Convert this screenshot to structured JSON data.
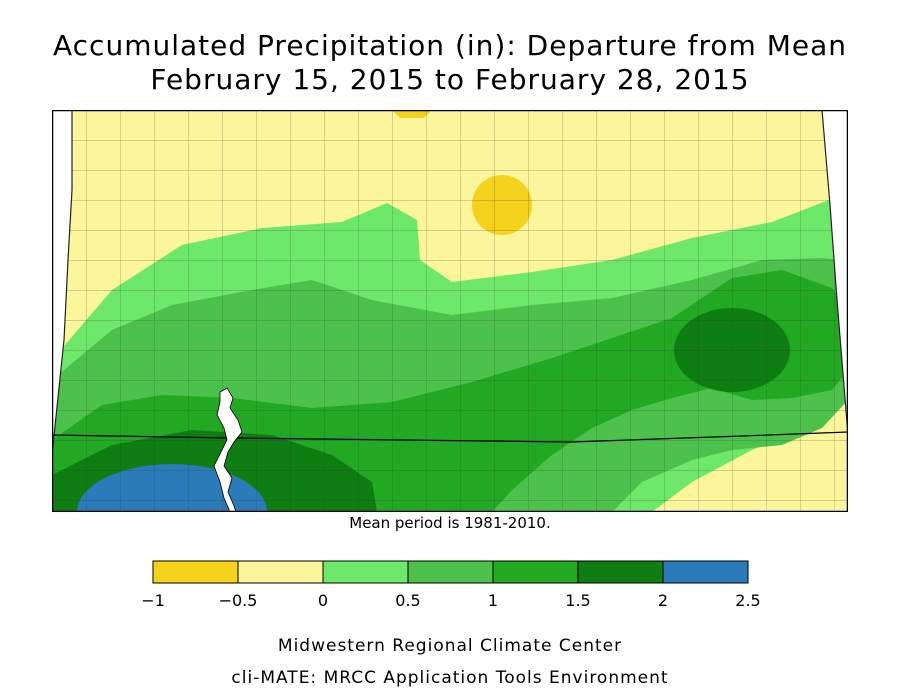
{
  "title_line1": "Accumulated Precipitation (in): Departure from Mean",
  "title_line2": "February 15, 2015 to February 28, 2015",
  "mean_note": "Mean period is 1981-2010.",
  "legend": {
    "ticks": [
      "−1",
      "−0.5",
      "0",
      "0.5",
      "1",
      "1.5",
      "2",
      "2.5"
    ],
    "colors": [
      "#f5d31d",
      "#fbf59c",
      "#6ee86a",
      "#4cc24c",
      "#22a822",
      "#0e7d12",
      "#2a7bb8"
    ]
  },
  "credit_line1": "Midwestern Regional Climate Center",
  "credit_line2": "cli-MATE: MRCC Application Tools Environment",
  "map_colors": {
    "yellow": "#f5d31d",
    "light_yellow": "#fbf59c",
    "light_green": "#6ee86a",
    "medium_green": "#4cc24c",
    "green": "#22a822",
    "dark_green": "#0e7d12",
    "blue": "#2a7bb8",
    "border": "#000000"
  }
}
